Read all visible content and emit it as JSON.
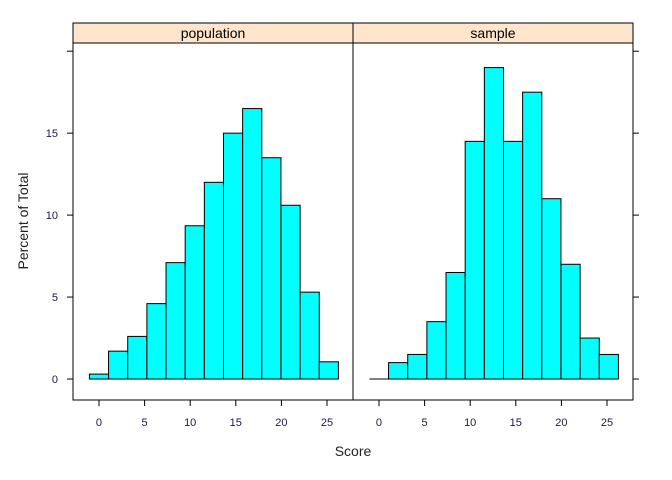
{
  "chart_data": {
    "type": "bar",
    "subtype": "histogram",
    "xlabel": "Score",
    "ylabel": "Percent of Total",
    "xlim": [
      -2.85,
      27.85
    ],
    "ylim": [
      -1.28,
      20.5
    ],
    "x_ticks": [
      0,
      5,
      10,
      15,
      20,
      25
    ],
    "y_ticks": [
      0,
      5,
      10,
      15
    ],
    "bin_start": -1.05,
    "bin_width": 2.1,
    "grid": false,
    "panels": [
      {
        "name": "population",
        "values": [
          0.3,
          1.7,
          2.6,
          4.6,
          7.1,
          9.35,
          12.0,
          15.0,
          16.5,
          13.5,
          10.6,
          5.3,
          1.05
        ]
      },
      {
        "name": "sample",
        "values": [
          0,
          1.0,
          1.5,
          3.5,
          6.5,
          14.5,
          19.0,
          14.5,
          17.5,
          11.0,
          7.0,
          2.5,
          1.5
        ]
      }
    ],
    "colors": {
      "bar": "#00FFFF",
      "strip": "#FFE5CC",
      "border": "#000000"
    }
  }
}
